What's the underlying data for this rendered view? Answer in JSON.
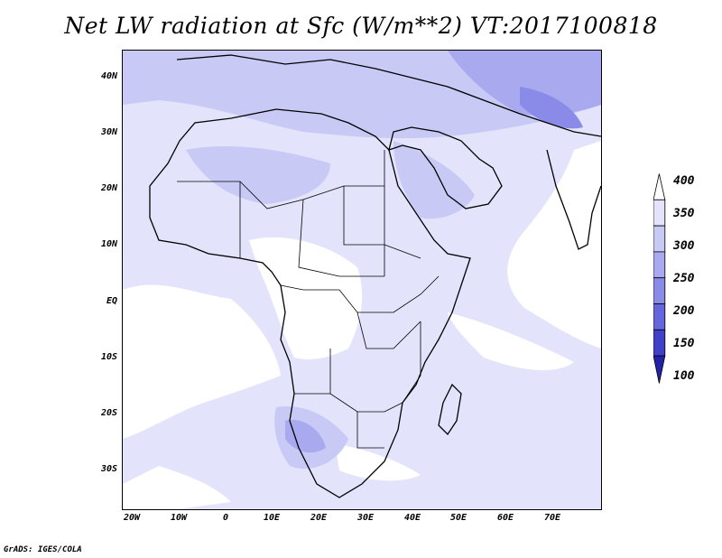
{
  "title": "Net LW radiation at Sfc (W/m**2) VT:2017100818",
  "footer": "GrADS: IGES/COLA",
  "lat_labels": [
    "40N",
    "30N",
    "20N",
    "10N",
    "EQ",
    "10S",
    "20S",
    "30S"
  ],
  "lon_labels": [
    "20W",
    "10W",
    "0",
    "10E",
    "20E",
    "30E",
    "40E",
    "50E",
    "60E",
    "70E"
  ],
  "colorbar": {
    "levels": [
      "400",
      "350",
      "300",
      "250",
      "200",
      "150",
      "100"
    ],
    "colors": [
      "#ffffff",
      "#e3e3fb",
      "#c9c9f6",
      "#a9a9f0",
      "#8a8ae8",
      "#6565dc",
      "#4040c8",
      "#2222a8"
    ]
  }
}
